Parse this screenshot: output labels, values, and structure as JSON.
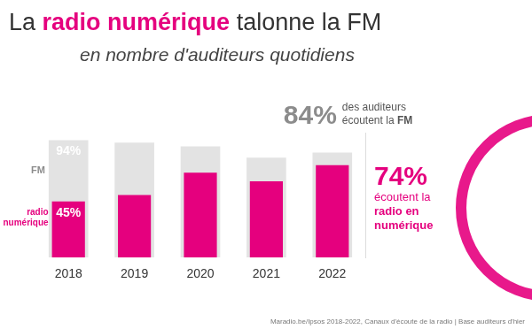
{
  "chart_data": {
    "type": "bar",
    "title": "La radio numérique talonne la FM",
    "title_highlight": "radio numérique",
    "subtitle": "en nombre d'auditeurs quotidiens",
    "categories": [
      "2018",
      "2019",
      "2020",
      "2021",
      "2022"
    ],
    "series": [
      {
        "name": "FM",
        "color": "#e3e3e3",
        "values": [
          94,
          92,
          89,
          80,
          84
        ],
        "value_labels": [
          "94%",
          null,
          null,
          null,
          null
        ]
      },
      {
        "name": "radio numérique",
        "color": "#e5007e",
        "values": [
          45,
          50,
          68,
          61,
          74
        ],
        "value_labels": [
          "45%",
          null,
          null,
          null,
          null
        ]
      }
    ],
    "ylim": [
      0,
      100
    ],
    "grid": false,
    "tick_labels": "x",
    "annotations": [
      {
        "series": "FM",
        "category": "2022",
        "label": "84%",
        "lines": [
          "des auditeurs",
          "écoutent la FM"
        ],
        "highlight": "FM"
      },
      {
        "series": "radio numérique",
        "category": "2022",
        "label": "74%",
        "lines": [
          "écoutent la",
          "radio en",
          "numérique"
        ],
        "highlight": "radio en numérique"
      }
    ],
    "source": "Maradio.be/Ipsos 2018-2022, Canaux d'écoute de la radio | Base auditeurs d'hier"
  }
}
